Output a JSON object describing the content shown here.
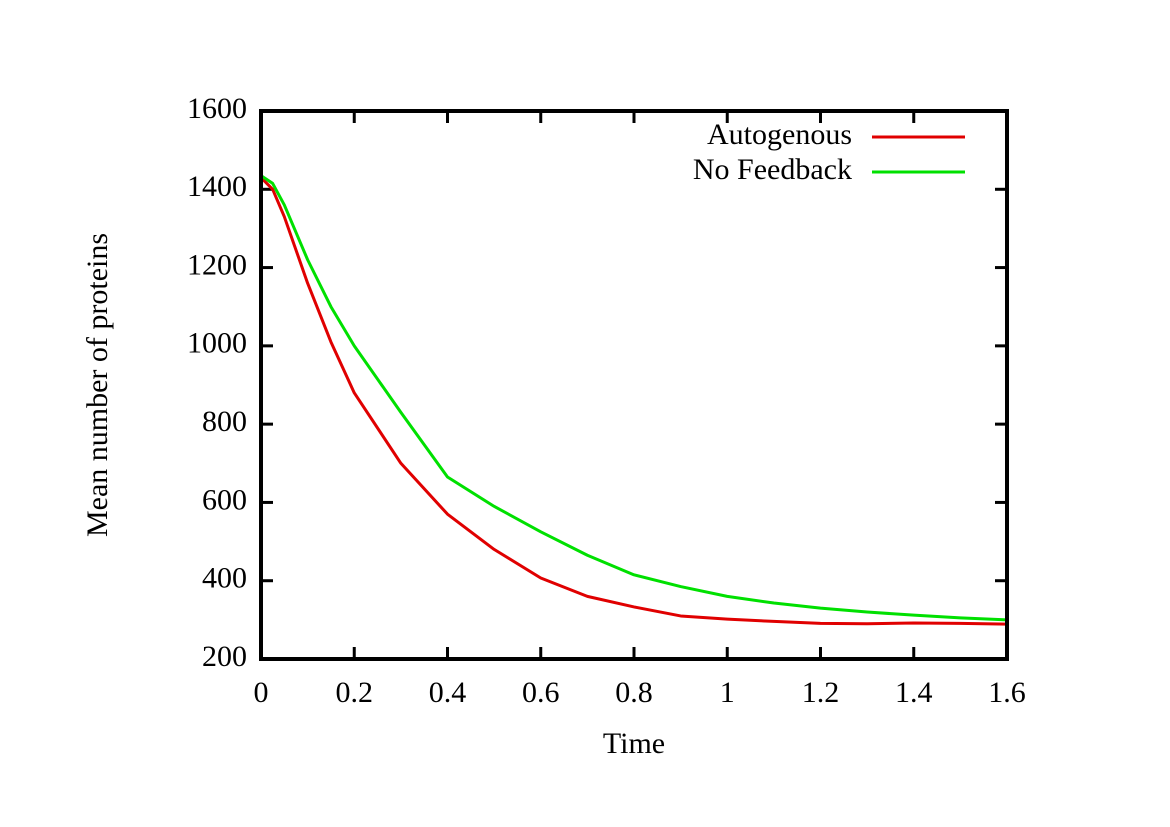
{
  "chart_data": {
    "type": "line",
    "xlabel": "Time",
    "ylabel": "Mean number of proteins",
    "x": [
      0,
      0.025,
      0.05,
      0.1,
      0.15,
      0.2,
      0.3,
      0.4,
      0.5,
      0.6,
      0.7,
      0.8,
      0.9,
      1.0,
      1.1,
      1.2,
      1.3,
      1.4,
      1.5,
      1.6
    ],
    "series": [
      {
        "name": "Autogenous",
        "color": "#e00000",
        "values": [
          1430,
          1400,
          1330,
          1160,
          1010,
          880,
          700,
          570,
          480,
          407,
          360,
          333,
          310,
          302,
          296,
          291,
          290,
          292,
          291,
          289
        ]
      },
      {
        "name": "No Feedback",
        "color": "#00e000",
        "values": [
          1435,
          1415,
          1360,
          1220,
          1100,
          1000,
          830,
          665,
          590,
          525,
          465,
          415,
          385,
          360,
          343,
          330,
          320,
          312,
          305,
          300
        ]
      }
    ],
    "xlim": [
      0,
      1.6
    ],
    "xticks": [
      0,
      0.2,
      0.4,
      0.6,
      0.8,
      1,
      1.2,
      1.4,
      1.6
    ],
    "ylim": [
      200,
      1600
    ],
    "yticks": [
      200,
      400,
      600,
      800,
      1000,
      1200,
      1400,
      1600
    ],
    "legend": "top-right",
    "grid": false
  }
}
